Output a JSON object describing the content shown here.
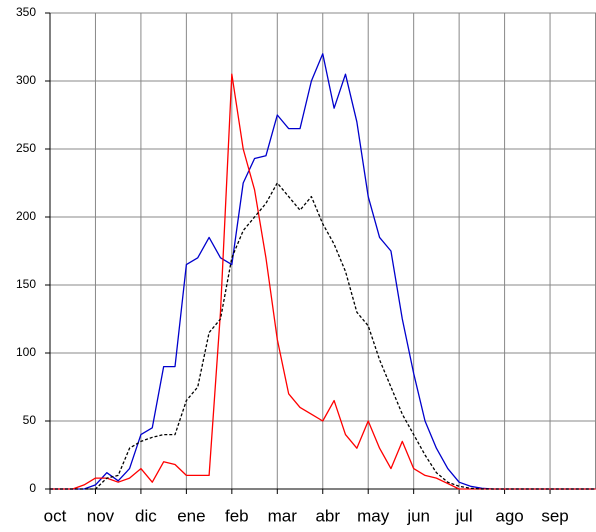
{
  "chart_data": {
    "type": "line",
    "x": [
      0,
      0.25,
      0.5,
      0.75,
      1,
      1.25,
      1.5,
      1.75,
      2,
      2.25,
      2.5,
      2.75,
      3,
      3.25,
      3.5,
      3.75,
      4,
      4.25,
      4.5,
      4.75,
      5,
      5.25,
      5.5,
      5.75,
      6,
      6.25,
      6.5,
      6.75,
      7,
      7.25,
      7.5,
      7.75,
      8,
      8.25,
      8.5,
      8.75,
      9,
      9.25,
      9.5,
      9.75,
      10,
      10.25,
      10.5,
      10.75,
      11,
      11.25,
      11.5,
      11.75,
      12
    ],
    "xlim": [
      0,
      12
    ],
    "xticks": [
      {
        "value": 0,
        "label": "oct"
      },
      {
        "value": 1,
        "label": "nov"
      },
      {
        "value": 2,
        "label": "dic"
      },
      {
        "value": 3,
        "label": "ene"
      },
      {
        "value": 4,
        "label": "feb"
      },
      {
        "value": 5,
        "label": "mar"
      },
      {
        "value": 6,
        "label": "abr"
      },
      {
        "value": 7,
        "label": "may"
      },
      {
        "value": 8,
        "label": "jun"
      },
      {
        "value": 9,
        "label": "jul"
      },
      {
        "value": 10,
        "label": "ago"
      },
      {
        "value": 11,
        "label": "sep"
      }
    ],
    "ylim": [
      0,
      350
    ],
    "yticks": [
      0,
      50,
      100,
      150,
      200,
      250,
      300,
      350
    ],
    "grid": true,
    "series": [
      {
        "color": "#0000cc",
        "dashed": false,
        "values": [
          0,
          0,
          0,
          0,
          3,
          12,
          6,
          15,
          40,
          45,
          90,
          90,
          165,
          170,
          185,
          170,
          165,
          225,
          243,
          245,
          275,
          265,
          265,
          300,
          320,
          280,
          305,
          270,
          215,
          185,
          175,
          125,
          85,
          50,
          30,
          15,
          5,
          2,
          0.5,
          0,
          0,
          0,
          0,
          0,
          0,
          0,
          0,
          0,
          0
        ]
      },
      {
        "color": "#ff0000",
        "dashed": false,
        "values": [
          0,
          0,
          0,
          3,
          8,
          8,
          5,
          8,
          15,
          5,
          20,
          18,
          10,
          10,
          10,
          130,
          305,
          250,
          220,
          170,
          110,
          70,
          60,
          55,
          50,
          65,
          40,
          30,
          50,
          30,
          15,
          35,
          15,
          10,
          8,
          4,
          0,
          0,
          0,
          0,
          0,
          0,
          0,
          0,
          0,
          0,
          0,
          0,
          0
        ]
      },
      {
        "color": "#000000",
        "dashed": true,
        "values": [
          0,
          0,
          0,
          0,
          0,
          8,
          10,
          30,
          35,
          38,
          40,
          40,
          65,
          75,
          115,
          125,
          170,
          190,
          200,
          210,
          225,
          215,
          205,
          215,
          195,
          180,
          160,
          130,
          120,
          95,
          75,
          55,
          40,
          25,
          12,
          5,
          2,
          0.5,
          0,
          0,
          0,
          0,
          0,
          0,
          0,
          0,
          0,
          0,
          0
        ]
      }
    ]
  }
}
